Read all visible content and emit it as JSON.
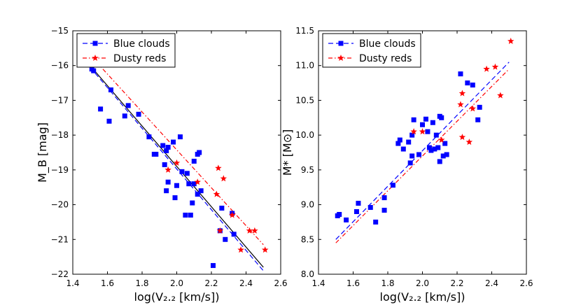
{
  "chart_data": [
    {
      "type": "scatter",
      "xlabel": "log(V₂.₂ [km/s])",
      "ylabel": "M_B [mag]",
      "xlim": [
        1.4,
        2.6
      ],
      "ylim": [
        -15,
        -22
      ],
      "y_inverted": true,
      "xticks": [
        "1.4",
        "1.6",
        "1.8",
        "2.0",
        "2.2",
        "2.4",
        "2.6"
      ],
      "yticks": [
        "−15",
        "−16",
        "−17",
        "−18",
        "−19",
        "−20",
        "−21",
        "−22"
      ],
      "legend": [
        {
          "label": "Blue clouds",
          "color": "#0000ff",
          "marker": "square",
          "line": "dashed"
        },
        {
          "label": "Dusty reds",
          "color": "#ff0000",
          "marker": "star",
          "line": "dashdot"
        }
      ],
      "series": [
        {
          "name": "Blue clouds",
          "color": "#0000ff",
          "marker": "square",
          "x": [
            1.51,
            1.52,
            1.56,
            1.61,
            1.62,
            1.7,
            1.72,
            1.78,
            1.84,
            1.87,
            1.88,
            1.92,
            1.93,
            1.94,
            1.94,
            1.95,
            1.95,
            1.98,
            1.99,
            2.0,
            2.02,
            2.03,
            2.05,
            2.06,
            2.07,
            2.08,
            2.09,
            2.1,
            2.1,
            2.12,
            2.12,
            2.13,
            2.14,
            2.21,
            2.25,
            2.26,
            2.28,
            2.32,
            2.33
          ],
          "y": [
            -16.1,
            -16.15,
            -17.25,
            -17.6,
            -16.7,
            -17.45,
            -17.15,
            -17.4,
            -18.05,
            -18.55,
            -18.55,
            -18.3,
            -18.85,
            -19.6,
            -18.45,
            -18.35,
            -19.35,
            -18.2,
            -19.8,
            -19.45,
            -18.05,
            -19.05,
            -20.3,
            -19.1,
            -19.4,
            -20.3,
            -19.95,
            -19.4,
            -18.75,
            -18.55,
            -19.7,
            -18.5,
            -19.6,
            -21.75,
            -20.75,
            -20.1,
            -21.0,
            -20.25,
            -20.85
          ]
        },
        {
          "name": "Dusty reds",
          "color": "#ff0000",
          "marker": "star",
          "x": [
            1.95,
            2.0,
            2.12,
            2.24,
            2.23,
            2.25,
            2.27,
            2.32,
            2.37,
            2.42,
            2.45,
            2.51
          ],
          "y": [
            -19.0,
            -18.8,
            -19.35,
            -18.95,
            -19.7,
            -20.75,
            -19.25,
            -20.3,
            -21.3,
            -20.75,
            -20.75,
            -21.3
          ]
        }
      ],
      "fits": [
        {
          "name": "all",
          "color": "#000000",
          "style": "solid",
          "x": [
            1.5,
            2.5
          ],
          "y": [
            -16.0,
            -21.8
          ]
        },
        {
          "name": "Blue clouds fit",
          "color": "#0000ff",
          "style": "dashed",
          "x": [
            1.5,
            2.5
          ],
          "y": [
            -16.05,
            -21.9
          ]
        },
        {
          "name": "Dusty reds fit",
          "color": "#ff0000",
          "style": "dashdot",
          "x": [
            1.5,
            2.5
          ],
          "y": [
            -15.7,
            -21.15
          ]
        }
      ]
    },
    {
      "type": "scatter",
      "xlabel": "log(V₂.₂ [km/s])",
      "ylabel": "M* [M⊙]",
      "xlim": [
        1.4,
        2.6
      ],
      "ylim": [
        8.0,
        11.5
      ],
      "y_inverted": false,
      "xticks": [
        "1.4",
        "1.6",
        "1.8",
        "2.0",
        "2.2",
        "2.4",
        "2.6"
      ],
      "yticks": [
        "8.0",
        "8.5",
        "9.0",
        "9.5",
        "10.0",
        "10.5",
        "11.0",
        "11.5"
      ],
      "legend": [
        {
          "label": "Blue clouds",
          "color": "#0000ff",
          "marker": "square",
          "line": "dashed"
        },
        {
          "label": "Dusty reds",
          "color": "#ff0000",
          "marker": "star",
          "line": "dashdot"
        }
      ],
      "series": [
        {
          "name": "Blue clouds",
          "color": "#0000ff",
          "marker": "square",
          "x": [
            1.51,
            1.52,
            1.56,
            1.62,
            1.63,
            1.7,
            1.73,
            1.78,
            1.78,
            1.83,
            1.86,
            1.87,
            1.89,
            1.92,
            1.93,
            1.94,
            1.94,
            1.95,
            1.98,
            2.0,
            2.02,
            2.03,
            2.04,
            2.05,
            2.06,
            2.07,
            2.08,
            2.09,
            2.1,
            2.1,
            2.11,
            2.12,
            2.13,
            2.14,
            2.22,
            2.26,
            2.29,
            2.32,
            2.33
          ],
          "y": [
            8.84,
            8.86,
            8.78,
            8.9,
            9.02,
            8.96,
            8.75,
            8.92,
            9.1,
            9.28,
            9.88,
            9.93,
            9.8,
            9.9,
            9.6,
            9.7,
            10.0,
            10.22,
            9.72,
            10.15,
            10.23,
            10.05,
            9.82,
            9.78,
            10.18,
            9.8,
            10.0,
            9.82,
            10.27,
            9.62,
            10.25,
            9.7,
            9.88,
            9.72,
            10.88,
            10.75,
            10.72,
            10.22,
            10.4
          ]
        },
        {
          "name": "Dusty reds",
          "color": "#ff0000",
          "marker": "star",
          "x": [
            1.95,
            2.0,
            2.11,
            2.22,
            2.23,
            2.23,
            2.27,
            2.29,
            2.37,
            2.42,
            2.45,
            2.51
          ],
          "y": [
            10.05,
            10.05,
            9.93,
            10.44,
            10.6,
            9.97,
            9.9,
            10.38,
            10.95,
            10.98,
            10.57,
            11.35
          ]
        }
      ],
      "fits": [
        {
          "name": "Blue clouds fit",
          "color": "#0000ff",
          "style": "dashed",
          "x": [
            1.5,
            2.5
          ],
          "y": [
            8.5,
            11.05
          ]
        },
        {
          "name": "Dusty reds fit",
          "color": "#ff0000",
          "style": "dashdot",
          "x": [
            1.5,
            2.5
          ],
          "y": [
            8.45,
            10.95
          ]
        }
      ]
    }
  ]
}
